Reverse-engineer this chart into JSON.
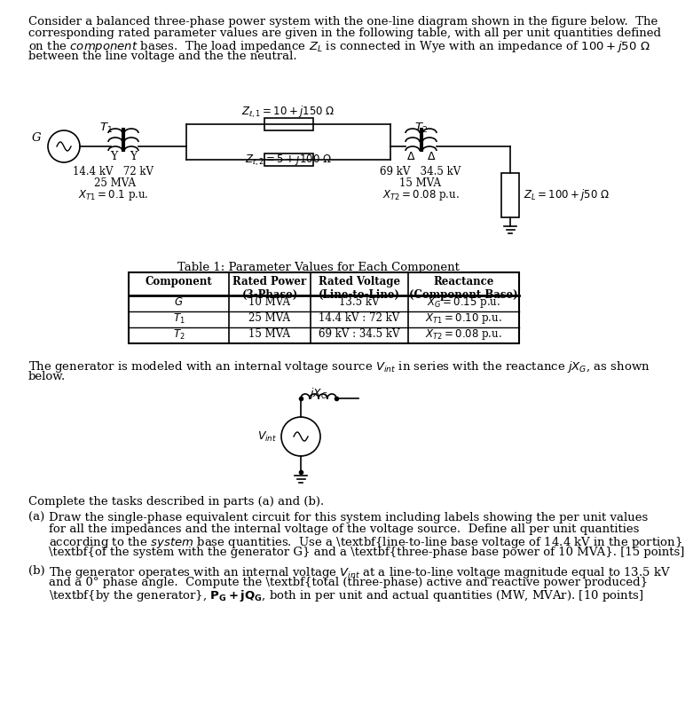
{
  "bg_color": "#ffffff",
  "text_color": "#000000",
  "intro_text": "Consider a balanced three-phase power system with the one-line diagram shown in the figure below.  The\ncorresponding rated parameter values are given in the following table, with all per unit quantities defined\non the component bases.  The load impedance $Z_L$ is connected in Wye with an impedance of $100 + j50\\ \\Omega$\nbetween the line voltage and the the neutral.",
  "table_title": "Table 1: Parameter Values for Each Component",
  "table_headers": [
    "Component",
    "Rated Power\n(3-Phase)",
    "Rated Voltage\n(Line-to-Line)",
    "Reactance\n(Component Base)"
  ],
  "table_rows": [
    [
      "$G$",
      "10 MVA",
      "13.5 kV",
      "$X_G = 0.15$ p.u."
    ],
    [
      "$T_1$",
      "25 MVA",
      "14.4 kV : 72 kV",
      "$X_{T1} = 0.10$ p.u."
    ],
    [
      "$T_2$",
      "15 MVA",
      "69 kV : 34.5 kV",
      "$X_{T2} = 0.08$ p.u."
    ]
  ],
  "gen_text": "The generator is modeled with an internal voltage source $V_{int}$ in series with the reactance $jX_G$, as shown\nbelow.",
  "complete_text": "Complete the tasks described in parts (a) and (b).",
  "part_a": "Draw the single-phase equivalent circuit for this system including labels showing the per unit values\nfor all the impedances and the internal voltage of the voltage source.  Define all per unit quantities\naccording to the system base quantities.  Use a line-to-line base voltage of 14.4 kV in the portion\nof the system with the generator G and a three-phase base power of 10 MVA. [15 points]",
  "part_b": "The generator operates with an internal voltage $V_{int}$ at a line-to-line voltage magnitude equal to 13.5 kV\nand a 0° phase angle.  Compute the total (three-phase) active and reactive power produced\nby the generator, $P_G + jQ_G$, both in per unit and actual quantities (MW, MVAr). [10 points]"
}
